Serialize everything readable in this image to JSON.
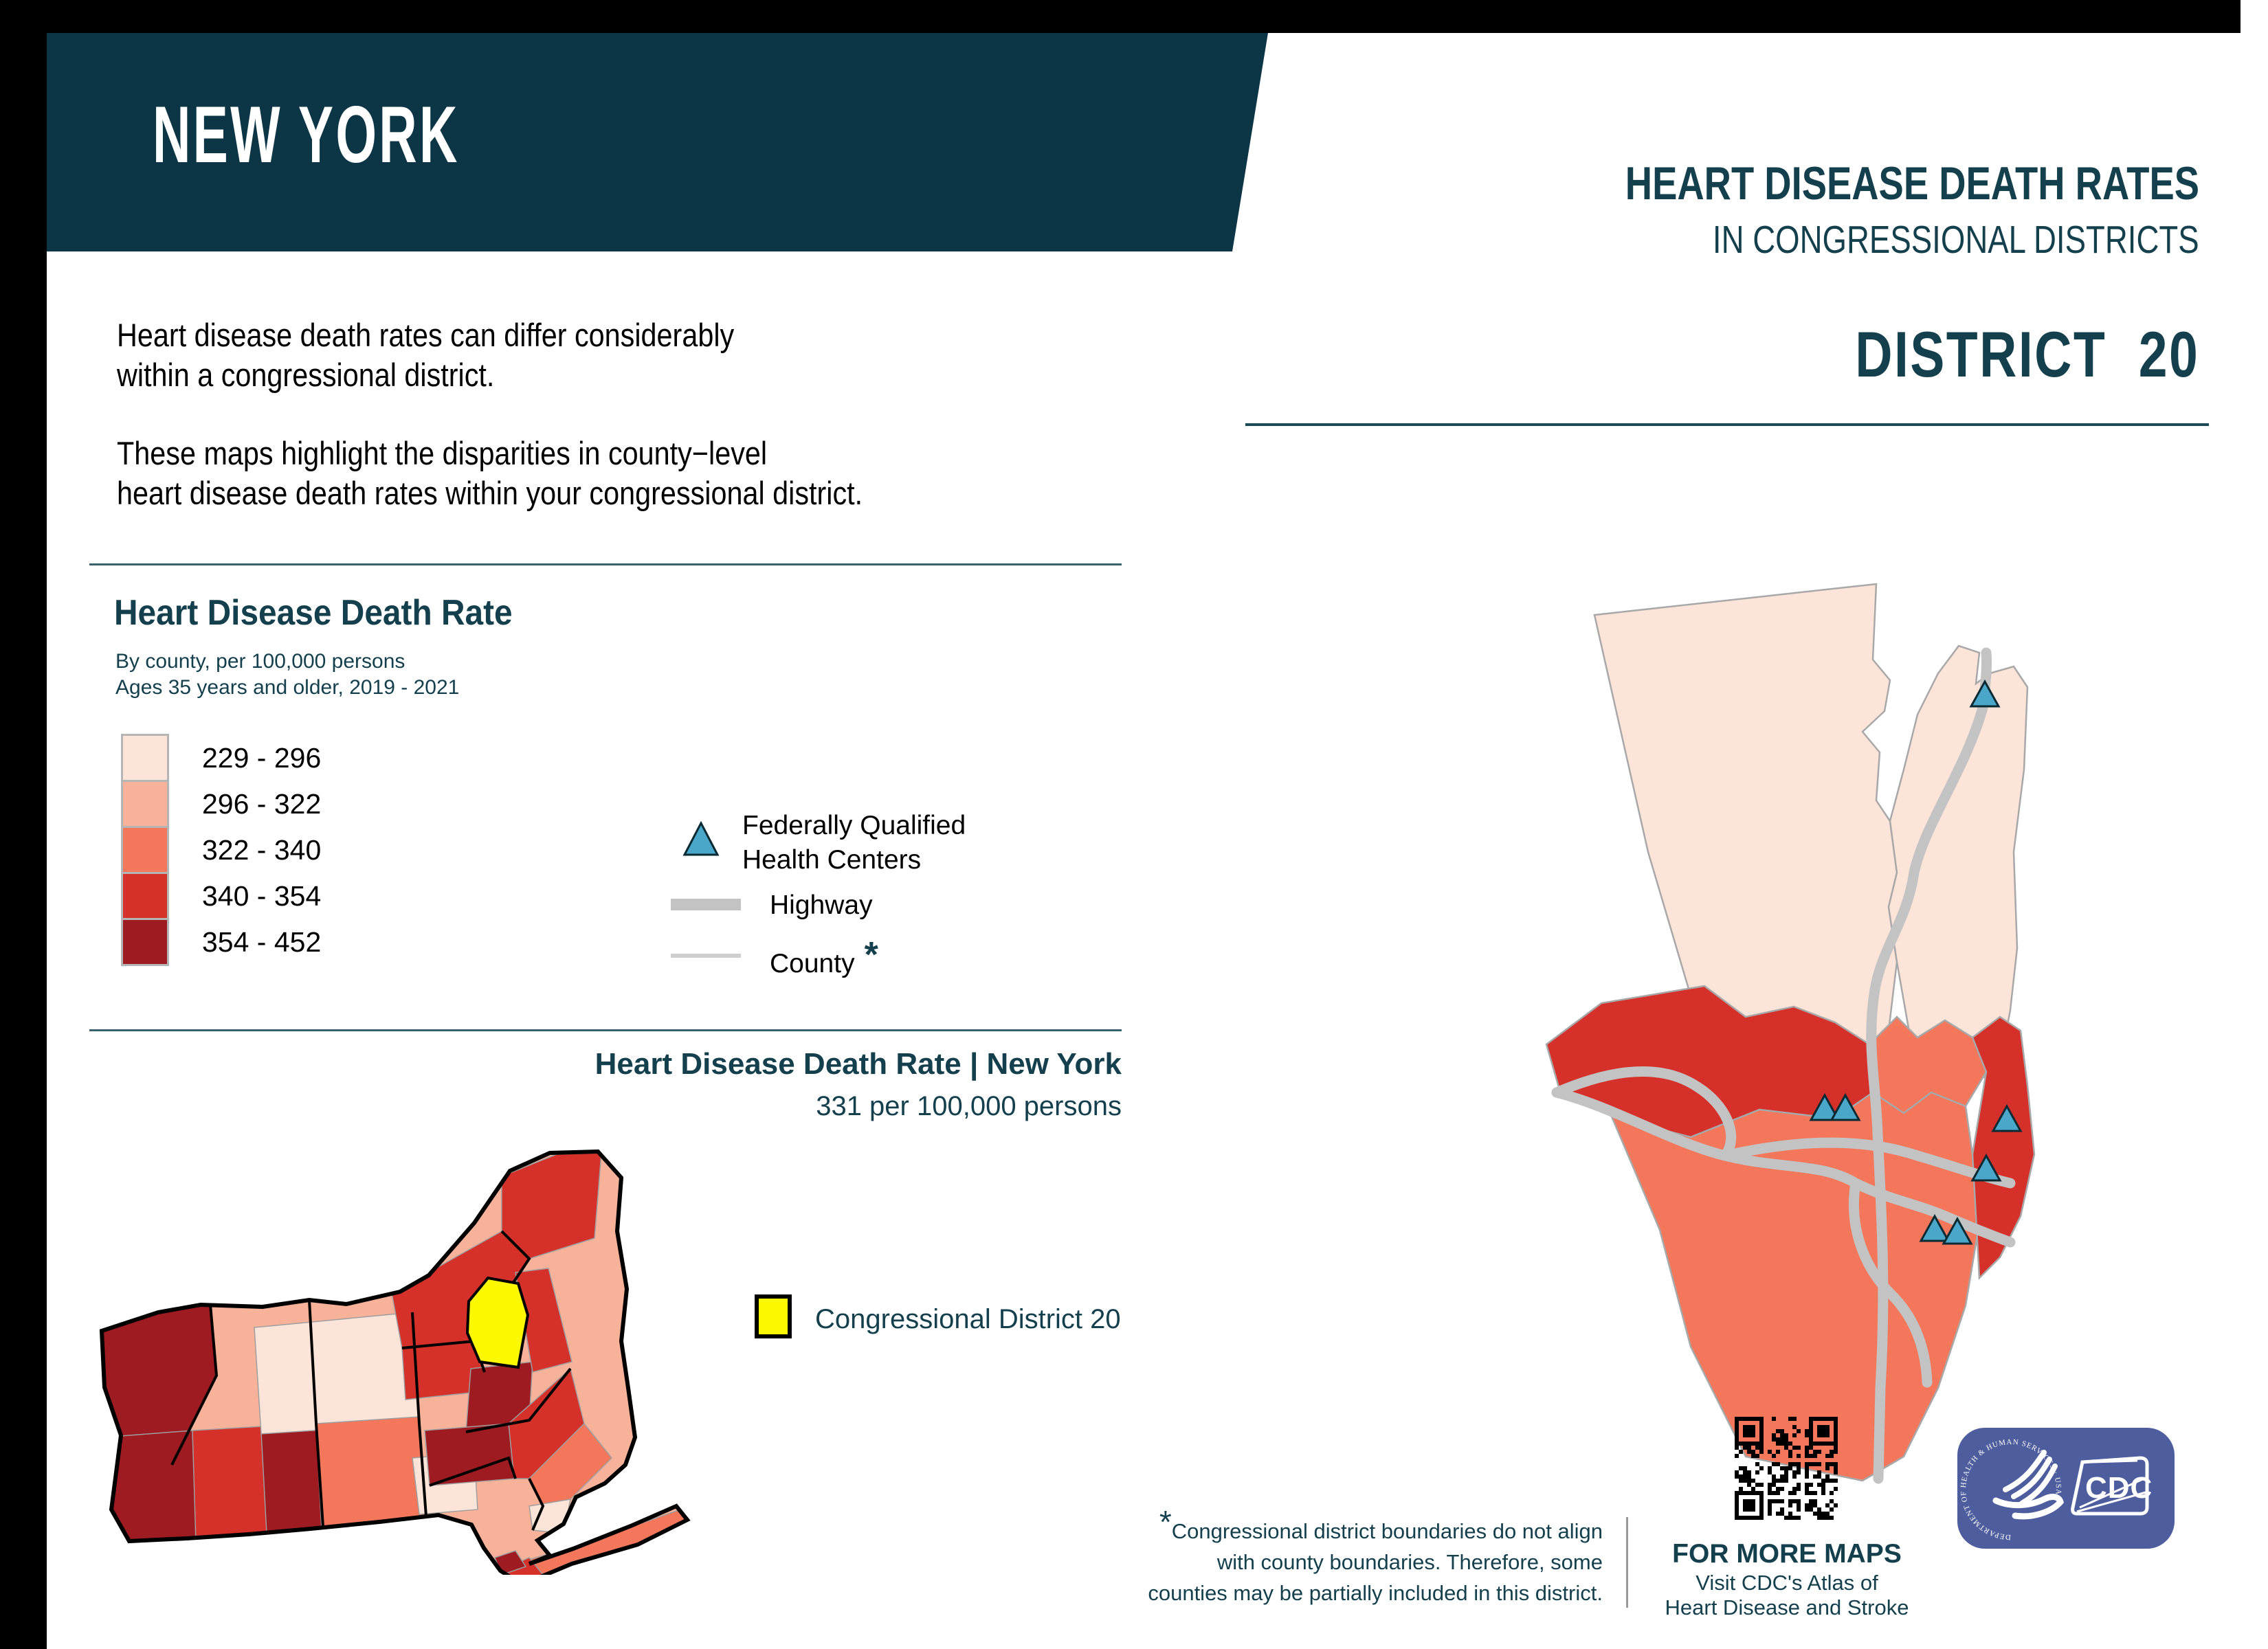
{
  "colors": {
    "teal_band": "#0c3645",
    "teal_text": "#143f4d",
    "class1": "#fce4d9",
    "class2": "#f8b29a",
    "class3": "#f4775c",
    "class4": "#d6302b",
    "class5": "#9e1b22",
    "district_yellow": "#fbf800",
    "highway_gray": "#c3c3c3",
    "fqhc_blue": "#4ba7c9",
    "hhs_blue": "#4d5d9d"
  },
  "banner": {
    "state_name": "NEW YORK"
  },
  "header": {
    "title_line1": "HEART DISEASE DEATH RATES",
    "title_line2": "IN CONGRESSIONAL DISTRICTS",
    "district_heading": "DISTRICT  20"
  },
  "intro": {
    "para1_line1": "Heart disease death rates can differ considerably",
    "para1_line2": "within a congressional district.",
    "para2_line1": "These maps highlight the disparities in county−level",
    "para2_line2": "heart disease death rates within your congressional district."
  },
  "legend": {
    "title": "Heart Disease Death Rate",
    "subtitle_line1": "By county, per 100,000 persons",
    "subtitle_line2": "Ages 35 years and older, 2019 - 2021",
    "classes": [
      {
        "range": "229 - 296",
        "color": "#fce4d9"
      },
      {
        "range": "296 - 322",
        "color": "#f8b29a"
      },
      {
        "range": "322 - 340",
        "color": "#f4775c"
      },
      {
        "range": "340 - 354",
        "color": "#d6302b"
      },
      {
        "range": "354 - 452",
        "color": "#9e1b22"
      }
    ],
    "fqhc_label_line1": "Federally Qualified",
    "fqhc_label_line2": "Health Centers",
    "highway_label": "Highway",
    "county_label": "County",
    "county_footnote_mark": "*"
  },
  "state_summary": {
    "title": "Heart Disease Death Rate | New York",
    "value": "331 per 100,000 persons"
  },
  "district_legend": {
    "label": "Congressional District 20"
  },
  "footnote": {
    "mark": "*",
    "line1": "Congressional district boundaries do not align",
    "line2": "with county boundaries. Therefore, some",
    "line3": "counties may be partially included in this district."
  },
  "more_maps": {
    "heading": "FOR MORE MAPS",
    "line1": "Visit CDC's Atlas of",
    "line2": "Heart Disease and Stroke"
  },
  "hhs_logo": {
    "seal_text": "DEPARTMENT OF HEALTH & HUMAN SERVICES · USA",
    "cdc_label": "CDC"
  },
  "map_data": {
    "type": "choropleth",
    "region": "New York",
    "district_shown": "District 20",
    "measure": "Heart disease death rate per 100,000 persons, ages 35 and older, 2019 - 2021",
    "class_breaks": [
      "229 - 296",
      "296 - 322",
      "322 - 340",
      "340 - 354",
      "354 - 452"
    ],
    "state_rate_per_100000": 331,
    "fqhc_markers_on_district_map": 7
  }
}
